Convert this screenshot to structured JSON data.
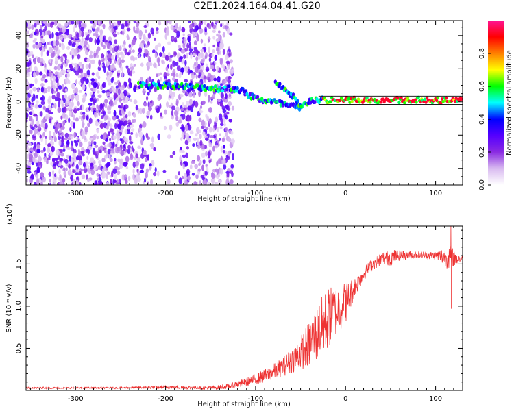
{
  "figure": {
    "title": "C2E1.2024.164.04.41.G20"
  },
  "chart_data": [
    {
      "type": "heatmap",
      "title": "C2E1.2024.164.04.41.G20",
      "xlabel": "Height of straight line (km)",
      "ylabel": "Frequency (Hz)",
      "xlim": [
        -355,
        130
      ],
      "ylim": [
        -50,
        49
      ],
      "x_ticks": [
        -300,
        -200,
        -100,
        0,
        100
      ],
      "x_tick_labels": [
        "-300",
        "-200",
        "-100",
        "0",
        "100"
      ],
      "y_ticks": [
        -40,
        -20,
        0,
        20,
        40
      ],
      "y_tick_labels": [
        "-40",
        "-20",
        "0",
        "20",
        "40"
      ],
      "colorbar": {
        "label": "Normalized spectral amplitude",
        "range": [
          0,
          1
        ],
        "ticks": [
          0.0,
          0.2,
          0.4,
          0.6,
          0.8
        ],
        "tick_labels": [
          "0.0",
          "0.2",
          "0.4",
          "0.6",
          "0.8"
        ],
        "colormap": [
          "#ffffff",
          "#d9bbf0",
          "#8a2be2",
          "#5500ff",
          "#0000ff",
          "#00ffff",
          "#00ff00",
          "#ffff00",
          "#ff8000",
          "#ff0000",
          "#ff1493"
        ]
      },
      "grid": false,
      "features": [
        {
          "name": "broadband noise",
          "x_range": [
            -355,
            -125
          ],
          "freq_range": [
            -50,
            49
          ],
          "amplitude": 0.15
        },
        {
          "name": "drifting carrier",
          "points": [
            [
              -230,
              10
            ],
            [
              -200,
              10
            ],
            [
              -170,
              9
            ],
            [
              -140,
              8
            ],
            [
              -120,
              8
            ],
            [
              -100,
              2
            ],
            [
              -80,
              0
            ],
            [
              -65,
              -2
            ],
            [
              -50,
              -4
            ],
            [
              -40,
              1
            ],
            [
              -20,
              1
            ],
            [
              0,
              1
            ],
            [
              50,
              1
            ],
            [
              100,
              1
            ],
            [
              130,
              1
            ]
          ]
        },
        {
          "name": "side branch",
          "points": [
            [
              -78,
              11
            ],
            [
              -68,
              8
            ],
            [
              -58,
              3
            ],
            [
              -48,
              -4
            ]
          ]
        }
      ]
    },
    {
      "type": "line",
      "xlabel": "Height of straight line (km)",
      "ylabel": "SNR (10 * v/v)",
      "y_scale_label": "(x10",
      "y_scale_exponent": "4",
      "y_scale_suffix": ")",
      "xlim": [
        -355,
        130
      ],
      "ylim": [
        0,
        1.95
      ],
      "x_ticks": [
        -300,
        -200,
        -100,
        0,
        100
      ],
      "x_tick_labels": [
        "-300",
        "-200",
        "-100",
        "0",
        "100"
      ],
      "y_ticks": [
        0.5,
        1.0,
        1.5
      ],
      "y_tick_labels": [
        "0.5",
        "1.0",
        "1.5"
      ],
      "color": "#ee3333",
      "grid": false,
      "series": [
        {
          "x": [
            -355,
            -300,
            -250,
            -200,
            -150,
            -130,
            -110,
            -90,
            -75,
            -60,
            -50,
            -40,
            -30,
            -20,
            -10,
            0,
            10,
            20,
            30,
            40,
            50,
            60,
            80,
            100,
            115,
            130
          ],
          "y": [
            0.03,
            0.03,
            0.03,
            0.04,
            0.03,
            0.05,
            0.1,
            0.17,
            0.25,
            0.35,
            0.45,
            0.55,
            0.7,
            0.85,
            0.95,
            1.05,
            1.22,
            1.38,
            1.5,
            1.56,
            1.58,
            1.6,
            1.61,
            1.6,
            1.58,
            1.56
          ],
          "noise": [
            0.01,
            0.01,
            0.01,
            0.02,
            0.02,
            0.03,
            0.05,
            0.08,
            0.1,
            0.15,
            0.2,
            0.28,
            0.35,
            0.38,
            0.3,
            0.25,
            0.12,
            0.08,
            0.07,
            0.08,
            0.1,
            0.06,
            0.04,
            0.05,
            0.15,
            0.03
          ]
        }
      ],
      "annotations": [
        {
          "text": "spike",
          "x": 117,
          "y": 1.95
        },
        {
          "text": "dip",
          "x": 117,
          "y": 0.97
        }
      ]
    }
  ]
}
